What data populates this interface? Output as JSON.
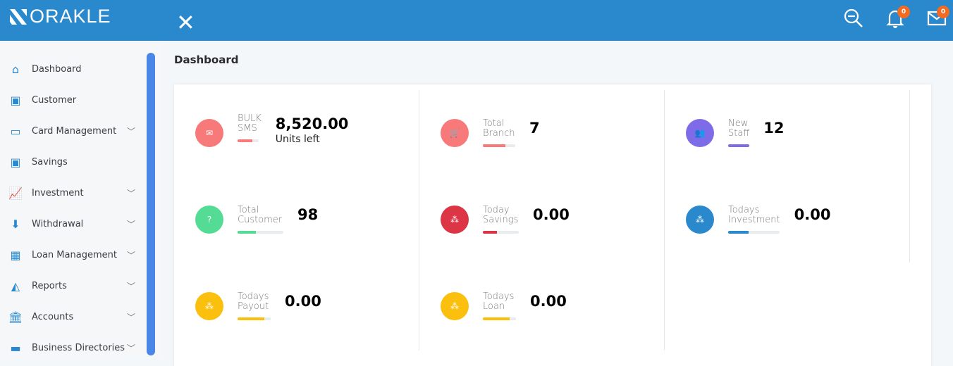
{
  "brand": "ORAKLE",
  "header": {
    "notifications_count": "0",
    "messages_count": "0",
    "icons": [
      "zoom-out-icon",
      "bell-icon",
      "envelope-icon"
    ],
    "color": "#2a88cc"
  },
  "sidebar": {
    "items": [
      {
        "label": "Dashboard",
        "icon": "home-icon",
        "glyph": "⌂",
        "chevron": false
      },
      {
        "label": "Customer",
        "icon": "money-icon",
        "glyph": "▣",
        "chevron": false
      },
      {
        "label": "Card Management",
        "icon": "credit-card-icon",
        "glyph": "▭",
        "chevron": true
      },
      {
        "label": "Savings",
        "icon": "money-icon",
        "glyph": "▣",
        "chevron": false
      },
      {
        "label": "Investment",
        "icon": "line-chart-icon",
        "glyph": "📈",
        "chevron": true
      },
      {
        "label": "Withdrawal",
        "icon": "arrow-circle-down-icon",
        "glyph": "⬇",
        "chevron": true
      },
      {
        "label": "Loan Management",
        "icon": "grid-icon",
        "glyph": "▦",
        "chevron": true
      },
      {
        "label": "Reports",
        "icon": "area-chart-icon",
        "glyph": "◭",
        "chevron": true
      },
      {
        "label": "Accounts",
        "icon": "bank-icon",
        "glyph": "🏛",
        "chevron": true
      },
      {
        "label": "Business Directories",
        "icon": "folder-icon",
        "glyph": "▬",
        "chevron": true
      }
    ]
  },
  "page": {
    "title": "Dashboard"
  },
  "stats": [
    {
      "l1": "BULK",
      "l2": "SMS",
      "value": "8,520.00",
      "sub": "Units left",
      "color": "#f87979",
      "icon": "envelope-icon",
      "glyph": "✉",
      "progress": 70,
      "barw": 30
    },
    {
      "l1": "Total",
      "l2": "Branch",
      "value": "7",
      "color": "#f87979",
      "icon": "cart-icon",
      "glyph": "🛒",
      "progress": 70,
      "barw": 46
    },
    {
      "l1": "New",
      "l2": "Staff",
      "value": "12",
      "color": "#7e6be8",
      "icon": "users-icon",
      "glyph": "👥",
      "progress": 100,
      "barw": 30
    },
    {
      "l1": "Total",
      "l2": "Customer",
      "value": "98",
      "color": "#55dc94",
      "icon": "question-icon",
      "glyph": "?",
      "progress": 40,
      "barw": 65
    },
    {
      "l1": "Today",
      "l2": "Savings",
      "value": "0.00",
      "color": "#dc3545",
      "icon": "cubes-icon",
      "glyph": "⁂",
      "progress": 40,
      "barw": 51
    },
    {
      "l1": "Todays",
      "l2": "Investment",
      "value": "0.00",
      "color": "#2a88cc",
      "icon": "cubes-icon",
      "glyph": "⁂",
      "progress": 40,
      "barw": 73
    },
    {
      "l1": "Todays",
      "l2": "Payout",
      "value": "0.00",
      "color": "#fbbf0e",
      "icon": "cubes-icon",
      "glyph": "⁂",
      "progress": 80,
      "barw": 47
    },
    {
      "l1": "Todays",
      "l2": "Loan",
      "value": "0.00",
      "color": "#fbbf0e",
      "icon": "cubes-icon",
      "glyph": "⁂",
      "progress": 80,
      "barw": 47
    }
  ]
}
